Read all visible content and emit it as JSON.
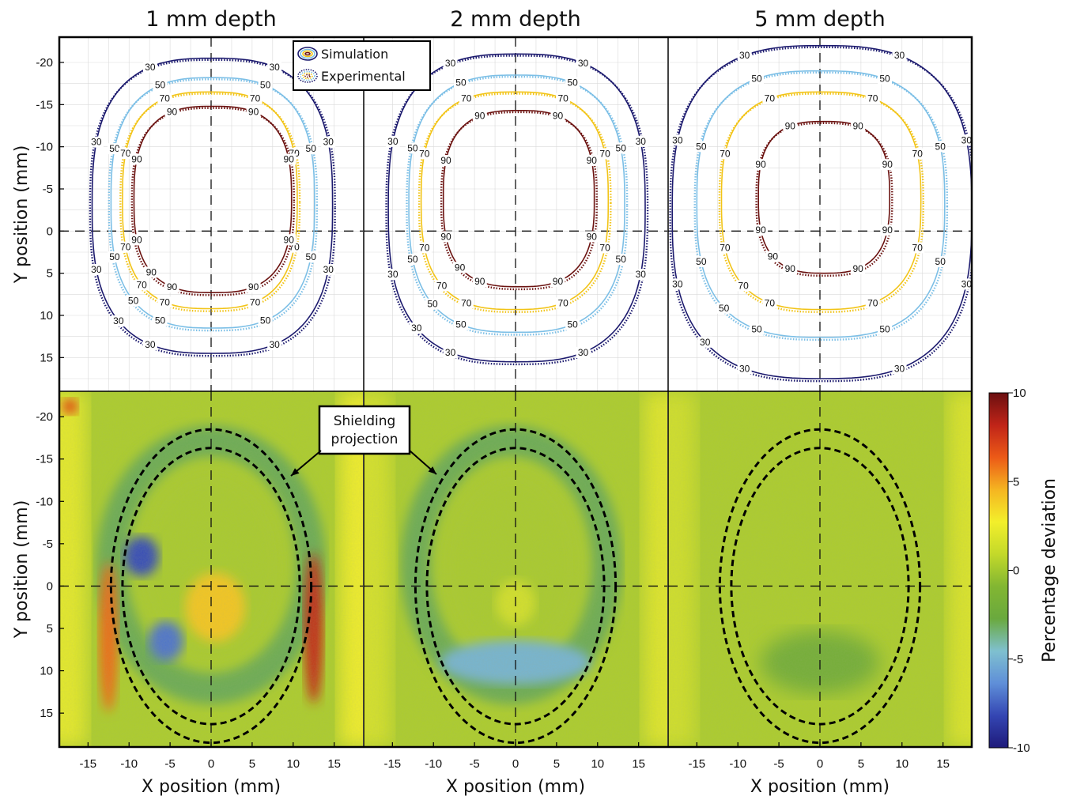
{
  "chart_data": {
    "type": "contour-heatmap",
    "panel_titles": [
      "1 mm depth",
      "2 mm depth",
      "5 mm depth"
    ],
    "xlabel": "X position (mm)",
    "ylabel": "Y position (mm)",
    "xlim": [
      -18.5,
      18.5
    ],
    "ylim_top": [
      -23,
      19
    ],
    "ylim_bottom": [
      -23,
      19
    ],
    "x_ticks": [
      -15,
      -10,
      -5,
      0,
      5,
      10,
      15
    ],
    "x_tick_labels": [
      "-15",
      "-10",
      "-5",
      "0",
      "5",
      "10",
      "15"
    ],
    "y_ticks": [
      -20,
      -15,
      -10,
      -5,
      0,
      5,
      10,
      15
    ],
    "y_tick_labels": [
      "-20",
      "-15",
      "-10",
      "-5",
      "0",
      "5",
      "10",
      "15"
    ],
    "legend": {
      "position": "top-center",
      "entries": [
        {
          "label": "Simulation",
          "style": "solid"
        },
        {
          "label": "Experimental",
          "style": "dotted"
        }
      ]
    },
    "contour_levels": [
      {
        "level": "30",
        "color": "#1c1a6e"
      },
      {
        "level": "50",
        "color": "#7cbfe6"
      },
      {
        "level": "70",
        "color": "#f2c417"
      },
      {
        "level": "90",
        "color": "#6b1210"
      }
    ],
    "contour_panels": [
      {
        "title": "1 mm depth",
        "contours": [
          {
            "level": "30",
            "x": [
              -14.5,
              14.8
            ],
            "y": [
              -20.5,
              14.5
            ]
          },
          {
            "level": "50",
            "x": [
              -12.2,
              12.6
            ],
            "y": [
              -18.2,
              11.5
            ]
          },
          {
            "level": "70",
            "x": [
              -10.8,
              10.5
            ],
            "y": [
              -16.5,
              9.2
            ]
          },
          {
            "level": "90",
            "x": [
              -9.4,
              9.8
            ],
            "y": [
              -14.8,
              7.3
            ]
          }
        ]
      },
      {
        "title": "2 mm depth",
        "contours": [
          {
            "level": "30",
            "x": [
              -15.5,
              15.8
            ],
            "y": [
              -21.0,
              15.5
            ]
          },
          {
            "level": "50",
            "x": [
              -13.0,
              13.3
            ],
            "y": [
              -18.5,
              12.0
            ]
          },
          {
            "level": "70",
            "x": [
              -11.5,
              11.3
            ],
            "y": [
              -16.5,
              9.3
            ]
          },
          {
            "level": "90",
            "x": [
              -8.8,
              9.6
            ],
            "y": [
              -14.3,
              6.6
            ]
          }
        ]
      },
      {
        "title": "5 mm depth",
        "contours": [
          {
            "level": "30",
            "x": [
              -18.0,
              18.5
            ],
            "y": [
              -22.0,
              17.5
            ]
          },
          {
            "level": "50",
            "x": [
              -15.0,
              15.2
            ],
            "y": [
              -19.0,
              12.6
            ]
          },
          {
            "level": "70",
            "x": [
              -12.0,
              12.3
            ],
            "y": [
              -16.5,
              9.3
            ]
          },
          {
            "level": "90",
            "x": [
              -7.5,
              8.5
            ],
            "y": [
              -13.0,
              5.0
            ]
          }
        ]
      }
    ],
    "heatmap_panels": [
      {
        "title": "1 mm depth",
        "regions": [
          {
            "desc": "ring",
            "x": [
              -12,
              12
            ],
            "y": [
              -17,
              12
            ],
            "value": -3
          },
          {
            "desc": "left blob",
            "cx": -8.5,
            "cy": -3.5,
            "value": -8
          },
          {
            "desc": "lower-left blob",
            "cx": -5.5,
            "cy": 6.5,
            "value": -7
          },
          {
            "desc": "center hotspot",
            "cx": 0.5,
            "cy": 2.5,
            "value": 4
          },
          {
            "desc": "right edge",
            "cx": 12.5,
            "cy": 5,
            "value": 8
          },
          {
            "desc": "left edge",
            "cx": -12.5,
            "cy": 6,
            "value": 6
          }
        ]
      },
      {
        "title": "2 mm depth",
        "regions": [
          {
            "desc": "ring",
            "x": [
              -12,
              11
            ],
            "y": [
              -17,
              12
            ],
            "value": -3
          },
          {
            "desc": "bottom band",
            "cx": 0,
            "cy": 9,
            "value": -5
          },
          {
            "desc": "center",
            "cx": 0,
            "cy": 2,
            "value": 1.5
          }
        ]
      },
      {
        "title": "5 mm depth",
        "regions": [
          {
            "desc": "lower patch",
            "cx": 0,
            "cy": 9,
            "value": -2
          },
          {
            "desc": "edges",
            "x": [
              -16,
              16
            ],
            "y": [
              -23,
              19
            ],
            "value": 2
          }
        ]
      }
    ],
    "shielding_projection": {
      "outer": {
        "rx": 12.2,
        "ry": 18.5
      },
      "inner": {
        "rx": 10.8,
        "ry": 16.3
      }
    },
    "annotation": "Shielding\nprojection",
    "colorbar": {
      "label": "Percentage deviation",
      "range": [
        -10,
        10
      ],
      "ticks": [
        10,
        5,
        0,
        -5,
        -10
      ],
      "tick_labels": [
        "10",
        "5",
        "0",
        "-5",
        "-10"
      ],
      "colors": [
        "#6b0f10",
        "#c02418",
        "#ec5a17",
        "#f5b521",
        "#f3ef2b",
        "#c3d92a",
        "#82b632",
        "#6aa93e",
        "#7fc0cf",
        "#5f8fd8",
        "#3446b3",
        "#1e1a7a"
      ]
    }
  }
}
